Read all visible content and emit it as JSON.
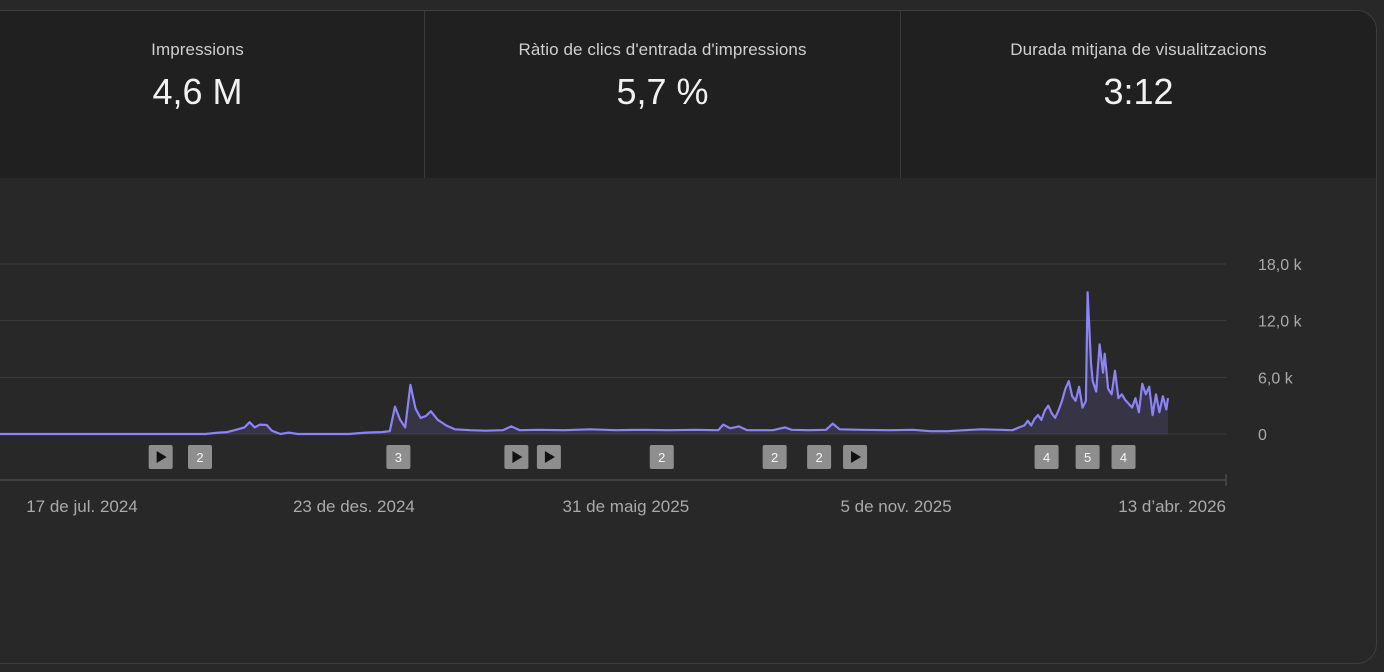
{
  "stats": [
    {
      "label": "Impressions",
      "value": "4,6 M"
    },
    {
      "label": "Ràtio de clics d'entrada d'impressions",
      "value": "5,7 %"
    },
    {
      "label": "Durada mitjana de visualitzacions",
      "value": "3:12"
    }
  ],
  "chart_data": {
    "type": "area",
    "x_start": "2024-04-10",
    "x_end": "2026-04-13",
    "ylim": [
      0,
      18000
    ],
    "y_ticks": [
      {
        "value": 18000,
        "label": "18,0 k"
      },
      {
        "value": 12000,
        "label": "12,0 k"
      },
      {
        "value": 6000,
        "label": "6,0 k"
      },
      {
        "value": 0,
        "label": "0"
      }
    ],
    "x_ticks": [
      {
        "date": "2024-07-17",
        "label": "17 de jul. 2024"
      },
      {
        "date": "2024-12-23",
        "label": "23 de des. 2024"
      },
      {
        "date": "2025-05-31",
        "label": "31 de maig 2025"
      },
      {
        "date": "2025-11-05",
        "label": "5 de nov. 2025"
      },
      {
        "date": "2026-04-13",
        "label": "13 d’abr. 2026"
      }
    ],
    "series": [
      {
        "color": "#8b83f7",
        "points": [
          [
            "2024-04-10",
            0
          ],
          [
            "2024-09-27",
            0
          ],
          [
            "2024-10-05",
            150
          ],
          [
            "2024-10-10",
            200
          ],
          [
            "2024-10-15",
            450
          ],
          [
            "2024-10-20",
            700
          ],
          [
            "2024-10-23",
            1250
          ],
          [
            "2024-10-26",
            700
          ],
          [
            "2024-10-29",
            1000
          ],
          [
            "2024-11-02",
            950
          ],
          [
            "2024-11-05",
            350
          ],
          [
            "2024-11-10",
            0
          ],
          [
            "2024-11-15",
            150
          ],
          [
            "2024-11-20",
            0
          ],
          [
            "2024-12-20",
            0
          ],
          [
            "2024-12-30",
            150
          ],
          [
            "2025-01-08",
            200
          ],
          [
            "2025-01-13",
            300
          ],
          [
            "2025-01-16",
            2900
          ],
          [
            "2025-01-19",
            1500
          ],
          [
            "2025-01-22",
            700
          ],
          [
            "2025-01-25",
            5200
          ],
          [
            "2025-01-28",
            2700
          ],
          [
            "2025-01-31",
            1700
          ],
          [
            "2025-02-03",
            1900
          ],
          [
            "2025-02-06",
            2400
          ],
          [
            "2025-02-10",
            1500
          ],
          [
            "2025-02-15",
            900
          ],
          [
            "2025-02-20",
            500
          ],
          [
            "2025-03-01",
            400
          ],
          [
            "2025-03-10",
            350
          ],
          [
            "2025-03-20",
            400
          ],
          [
            "2025-03-25",
            800
          ],
          [
            "2025-03-30",
            400
          ],
          [
            "2025-04-10",
            450
          ],
          [
            "2025-04-25",
            400
          ],
          [
            "2025-05-10",
            500
          ],
          [
            "2025-05-25",
            400
          ],
          [
            "2025-06-10",
            450
          ],
          [
            "2025-06-25",
            400
          ],
          [
            "2025-07-10",
            450
          ],
          [
            "2025-07-24",
            400
          ],
          [
            "2025-07-27",
            1000
          ],
          [
            "2025-07-31",
            600
          ],
          [
            "2025-08-05",
            800
          ],
          [
            "2025-08-10",
            400
          ],
          [
            "2025-08-25",
            400
          ],
          [
            "2025-09-01",
            700
          ],
          [
            "2025-09-05",
            450
          ],
          [
            "2025-09-15",
            400
          ],
          [
            "2025-09-25",
            450
          ],
          [
            "2025-09-29",
            1100
          ],
          [
            "2025-10-03",
            500
          ],
          [
            "2025-10-15",
            450
          ],
          [
            "2025-11-01",
            400
          ],
          [
            "2025-11-15",
            450
          ],
          [
            "2025-11-25",
            300
          ],
          [
            "2025-12-05",
            300
          ],
          [
            "2025-12-15",
            400
          ],
          [
            "2025-12-25",
            500
          ],
          [
            "2026-01-05",
            450
          ],
          [
            "2026-01-12",
            400
          ],
          [
            "2026-01-16",
            700
          ],
          [
            "2026-01-19",
            900
          ],
          [
            "2026-01-21",
            1400
          ],
          [
            "2026-01-23",
            900
          ],
          [
            "2026-01-25",
            1600
          ],
          [
            "2026-01-27",
            2000
          ],
          [
            "2026-01-29",
            1500
          ],
          [
            "2026-01-31",
            2500
          ],
          [
            "2026-02-02",
            3000
          ],
          [
            "2026-02-04",
            2200
          ],
          [
            "2026-02-06",
            1700
          ],
          [
            "2026-02-08",
            2500
          ],
          [
            "2026-02-10",
            3500
          ],
          [
            "2026-02-12",
            4800
          ],
          [
            "2026-02-14",
            5600
          ],
          [
            "2026-02-16",
            4000
          ],
          [
            "2026-02-18",
            3500
          ],
          [
            "2026-02-20",
            5000
          ],
          [
            "2026-02-22",
            2800
          ],
          [
            "2026-02-24",
            3500
          ],
          [
            "2026-02-25",
            15000
          ],
          [
            "2026-02-27",
            7500
          ],
          [
            "2026-02-28",
            5600
          ],
          [
            "2026-03-02",
            4500
          ],
          [
            "2026-03-04",
            9500
          ],
          [
            "2026-03-06",
            6500
          ],
          [
            "2026-03-07",
            8500
          ],
          [
            "2026-03-09",
            4800
          ],
          [
            "2026-03-11",
            4200
          ],
          [
            "2026-03-13",
            6700
          ],
          [
            "2026-03-15",
            3800
          ],
          [
            "2026-03-17",
            4200
          ],
          [
            "2026-03-19",
            3600
          ],
          [
            "2026-03-21",
            3200
          ],
          [
            "2026-03-23",
            2800
          ],
          [
            "2026-03-25",
            3800
          ],
          [
            "2026-03-27",
            2300
          ],
          [
            "2026-03-29",
            5300
          ],
          [
            "2026-03-31",
            4200
          ],
          [
            "2026-04-02",
            5000
          ],
          [
            "2026-04-04",
            2000
          ],
          [
            "2026-04-06",
            4200
          ],
          [
            "2026-04-08",
            2300
          ],
          [
            "2026-04-10",
            4000
          ],
          [
            "2026-04-12",
            2600
          ],
          [
            "2026-04-13",
            3800
          ]
        ]
      }
    ],
    "annotations": [
      {
        "date": "2024-09-01",
        "kind": "play-icon"
      },
      {
        "date": "2024-09-24",
        "kind": "count",
        "label": "2"
      },
      {
        "date": "2025-01-18",
        "kind": "count",
        "label": "3"
      },
      {
        "date": "2025-03-28",
        "kind": "play-icon"
      },
      {
        "date": "2025-04-16",
        "kind": "play-icon"
      },
      {
        "date": "2025-06-21",
        "kind": "count",
        "label": "2"
      },
      {
        "date": "2025-08-26",
        "kind": "count",
        "label": "2"
      },
      {
        "date": "2025-09-21",
        "kind": "count",
        "label": "2"
      },
      {
        "date": "2025-10-12",
        "kind": "play-icon"
      },
      {
        "date": "2026-02-01",
        "kind": "count",
        "label": "4"
      },
      {
        "date": "2026-02-25",
        "kind": "count",
        "label": "5"
      },
      {
        "date": "2026-03-18",
        "kind": "count",
        "label": "4"
      }
    ]
  }
}
